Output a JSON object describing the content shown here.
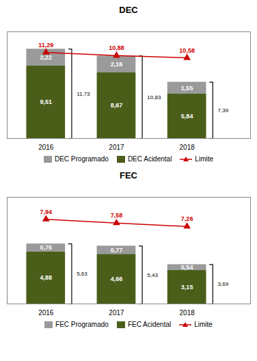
{
  "chart_data": [
    {
      "type": "bar",
      "title": "DEC",
      "categories": [
        "2016",
        "2017",
        "2018"
      ],
      "stacked": true,
      "data_labels": true,
      "tick_labels": "x",
      "grid": false,
      "legend": "bottom",
      "ylim": [
        0,
        14.0
      ],
      "series": [
        {
          "name": "DEC Acidental",
          "type": "bar",
          "color": "#4a5e1a",
          "values": [
            9.51,
            8.67,
            5.84
          ],
          "value_labels": [
            "9,51",
            "8,67",
            "5,84"
          ]
        },
        {
          "name": "DEC Programado",
          "type": "bar",
          "color": "#9a9a9a",
          "values": [
            2.22,
            2.16,
            1.55
          ],
          "value_labels": [
            "2,22",
            "2,16",
            "1,55"
          ]
        },
        {
          "name": "Limite",
          "type": "line",
          "color": "#cc0000",
          "marker": "triangle",
          "values": [
            11.29,
            10.88,
            10.58
          ],
          "value_labels": [
            "11,29",
            "10,88",
            "10,58"
          ]
        }
      ],
      "totals": [
        11.73,
        10.83,
        7.39
      ],
      "total_labels": [
        "11,73",
        "10,83",
        "7,39"
      ]
    },
    {
      "type": "bar",
      "title": "FEC",
      "categories": [
        "2016",
        "2017",
        "2018"
      ],
      "stacked": true,
      "data_labels": true,
      "tick_labels": "x",
      "grid": false,
      "legend": "bottom",
      "ylim": [
        0,
        10.0
      ],
      "series": [
        {
          "name": "FEC Acidental",
          "type": "bar",
          "color": "#4a5e1a",
          "values": [
            4.88,
            4.66,
            3.15
          ],
          "value_labels": [
            "4,88",
            "4,66",
            "3,15"
          ]
        },
        {
          "name": "FEC Programado",
          "type": "bar",
          "color": "#9a9a9a",
          "values": [
            0.75,
            0.77,
            0.54
          ],
          "value_labels": [
            "0,75",
            "0,77",
            "0,54"
          ]
        },
        {
          "name": "Limite",
          "type": "line",
          "color": "#cc0000",
          "marker": "triangle",
          "values": [
            7.94,
            7.58,
            7.26
          ],
          "value_labels": [
            "7,94",
            "7,58",
            "7,26"
          ]
        }
      ],
      "totals": [
        5.63,
        5.43,
        3.69
      ],
      "total_labels": [
        "5,63",
        "5,43",
        "3,69"
      ]
    }
  ]
}
